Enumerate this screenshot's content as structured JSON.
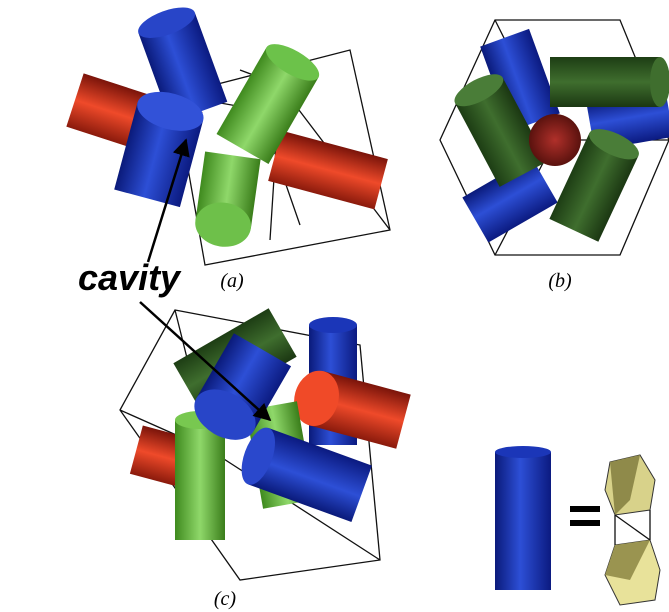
{
  "annotation": "cavity",
  "panels": {
    "a": "(a)",
    "b": "(b)",
    "c": "(c)"
  }
}
